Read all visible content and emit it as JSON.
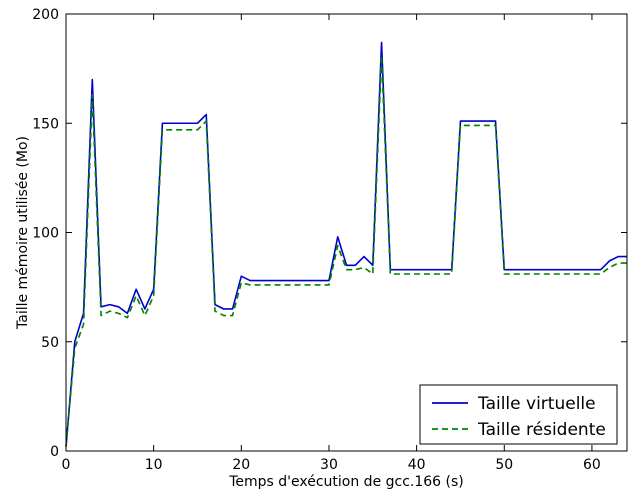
{
  "chart_data": {
    "type": "line",
    "title": "",
    "xlabel": "Temps d'exécution de gcc.166 (s)",
    "ylabel": "Taille mémoire utilisée (Mo)",
    "xlim": [
      0,
      64
    ],
    "ylim": [
      0,
      200
    ],
    "xticks": [
      0,
      10,
      20,
      30,
      40,
      50,
      60
    ],
    "yticks": [
      0,
      50,
      100,
      150,
      200
    ],
    "grid": false,
    "legend_position": "bottom-right",
    "series": [
      {
        "name": "Taille virtuelle",
        "color": "#0000cc",
        "style": "solid",
        "points": [
          [
            0,
            2
          ],
          [
            1,
            50
          ],
          [
            2,
            63
          ],
          [
            3,
            170
          ],
          [
            4,
            66
          ],
          [
            5,
            67
          ],
          [
            6,
            66
          ],
          [
            7,
            63
          ],
          [
            8,
            74
          ],
          [
            9,
            65
          ],
          [
            10,
            74
          ],
          [
            11,
            150
          ],
          [
            12,
            150
          ],
          [
            13,
            150
          ],
          [
            14,
            150
          ],
          [
            15,
            150
          ],
          [
            16,
            154
          ],
          [
            17,
            67
          ],
          [
            18,
            65
          ],
          [
            19,
            65
          ],
          [
            20,
            80
          ],
          [
            21,
            78
          ],
          [
            22,
            78
          ],
          [
            23,
            78
          ],
          [
            24,
            78
          ],
          [
            25,
            78
          ],
          [
            26,
            78
          ],
          [
            27,
            78
          ],
          [
            28,
            78
          ],
          [
            29,
            78
          ],
          [
            30,
            78
          ],
          [
            31,
            98
          ],
          [
            32,
            85
          ],
          [
            33,
            85
          ],
          [
            34,
            89
          ],
          [
            35,
            85
          ],
          [
            36,
            187
          ],
          [
            37,
            83
          ],
          [
            38,
            83
          ],
          [
            39,
            83
          ],
          [
            40,
            83
          ],
          [
            41,
            83
          ],
          [
            42,
            83
          ],
          [
            43,
            83
          ],
          [
            44,
            83
          ],
          [
            45,
            151
          ],
          [
            46,
            151
          ],
          [
            47,
            151
          ],
          [
            48,
            151
          ],
          [
            49,
            151
          ],
          [
            50,
            83
          ],
          [
            51,
            83
          ],
          [
            52,
            83
          ],
          [
            53,
            83
          ],
          [
            54,
            83
          ],
          [
            55,
            83
          ],
          [
            56,
            83
          ],
          [
            57,
            83
          ],
          [
            58,
            83
          ],
          [
            59,
            83
          ],
          [
            60,
            83
          ],
          [
            61,
            83
          ],
          [
            62,
            87
          ],
          [
            63,
            89
          ],
          [
            64,
            89
          ]
        ]
      },
      {
        "name": "Taille résidente",
        "color": "#008000",
        "style": "dashed",
        "points": [
          [
            0,
            2
          ],
          [
            1,
            47
          ],
          [
            2,
            58
          ],
          [
            3,
            163
          ],
          [
            4,
            62
          ],
          [
            5,
            64
          ],
          [
            6,
            63
          ],
          [
            7,
            61
          ],
          [
            8,
            71
          ],
          [
            9,
            62
          ],
          [
            10,
            71
          ],
          [
            11,
            147
          ],
          [
            12,
            147
          ],
          [
            13,
            147
          ],
          [
            14,
            147
          ],
          [
            15,
            147
          ],
          [
            16,
            151
          ],
          [
            17,
            64
          ],
          [
            18,
            62
          ],
          [
            19,
            62
          ],
          [
            20,
            77
          ],
          [
            21,
            76
          ],
          [
            22,
            76
          ],
          [
            23,
            76
          ],
          [
            24,
            76
          ],
          [
            25,
            76
          ],
          [
            26,
            76
          ],
          [
            27,
            76
          ],
          [
            28,
            76
          ],
          [
            29,
            76
          ],
          [
            30,
            76
          ],
          [
            31,
            94
          ],
          [
            32,
            83
          ],
          [
            33,
            83
          ],
          [
            34,
            84
          ],
          [
            35,
            81
          ],
          [
            36,
            181
          ],
          [
            37,
            81
          ],
          [
            38,
            81
          ],
          [
            39,
            81
          ],
          [
            40,
            81
          ],
          [
            41,
            81
          ],
          [
            42,
            81
          ],
          [
            43,
            81
          ],
          [
            44,
            81
          ],
          [
            45,
            149
          ],
          [
            46,
            149
          ],
          [
            47,
            149
          ],
          [
            48,
            149
          ],
          [
            49,
            149
          ],
          [
            50,
            81
          ],
          [
            51,
            81
          ],
          [
            52,
            81
          ],
          [
            53,
            81
          ],
          [
            54,
            81
          ],
          [
            55,
            81
          ],
          [
            56,
            81
          ],
          [
            57,
            81
          ],
          [
            58,
            81
          ],
          [
            59,
            81
          ],
          [
            60,
            81
          ],
          [
            61,
            81
          ],
          [
            62,
            84
          ],
          [
            63,
            86
          ],
          [
            64,
            86
          ]
        ]
      }
    ]
  }
}
